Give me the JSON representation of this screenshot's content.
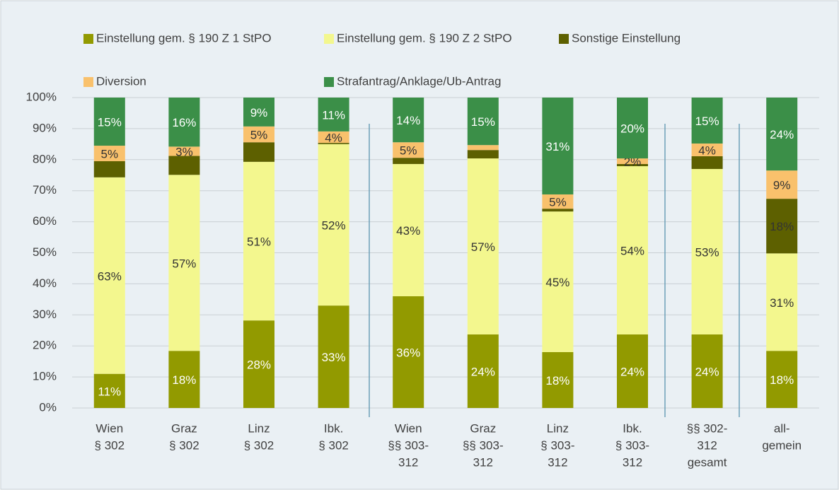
{
  "chart_data": {
    "type": "stacked-bar",
    "categories": [
      [
        "Wien",
        "§ 302"
      ],
      [
        "Graz",
        "§ 302"
      ],
      [
        "Linz",
        "§ 302"
      ],
      [
        "Ibk.",
        "§ 302"
      ],
      [
        "Wien",
        "§§ 303-",
        "312"
      ],
      [
        "Graz",
        "§§ 303-",
        "312"
      ],
      [
        "Linz",
        "§ 303-",
        "312"
      ],
      [
        "Ibk.",
        "§ 303-",
        "312"
      ],
      [
        "§§ 302-",
        "312",
        "gesamt"
      ],
      [
        "all-",
        "gemein"
      ]
    ],
    "series": [
      {
        "name": "Einstellung gem. § 190 Z 1 StPO",
        "color": "#929a00",
        "values": [
          11.0,
          18.4,
          28.2,
          33.0,
          36.0,
          23.7,
          18.0,
          23.7,
          23.7,
          18.4
        ],
        "value_labels": [
          "11%",
          "18%",
          "28%",
          "33%",
          "36%",
          "24%",
          "18%",
          "24%",
          "24%",
          "18%"
        ]
      },
      {
        "name": "Einstellung gem. § 190 Z 2 StPO",
        "color": "#f3f78e",
        "values": [
          63.3,
          56.7,
          51.1,
          52.0,
          42.6,
          56.7,
          45.3,
          54.2,
          53.3,
          31.4
        ],
        "value_labels": [
          "63%",
          "57%",
          "51%",
          "52%",
          "43%",
          "57%",
          "45%",
          "54%",
          "53%",
          "31%"
        ]
      },
      {
        "name": "Sonstige Einstellung",
        "color": "#5d6000",
        "values": [
          5.2,
          6.1,
          6.3,
          0.4,
          2.0,
          2.7,
          0.9,
          0.7,
          4.1,
          17.6
        ],
        "value_labels": [
          null,
          null,
          null,
          null,
          null,
          null,
          null,
          null,
          null,
          "18%"
        ]
      },
      {
        "name": "Diversion",
        "color": "#f9c16c",
        "values": [
          5.0,
          3.0,
          5.1,
          3.7,
          5.0,
          1.6,
          4.6,
          1.8,
          4.1,
          9.1
        ],
        "value_labels": [
          "5%",
          "3%",
          "5%",
          "4%",
          "5%",
          null,
          "5%",
          "2%",
          "4%",
          "9%"
        ]
      },
      {
        "name": "Strafantrag/Anklage/Ub-Antrag",
        "color": "#3b8f48",
        "values": [
          15.5,
          15.8,
          9.3,
          10.9,
          14.4,
          15.3,
          31.2,
          19.6,
          14.8,
          23.5
        ],
        "value_labels": [
          "15%",
          "16%",
          "9%",
          "11%",
          "14%",
          "15%",
          "31%",
          "20%",
          "15%",
          "24%"
        ]
      }
    ],
    "ylim": [
      0,
      100
    ],
    "yticks": [
      {
        "value": 0,
        "label": "0%"
      },
      {
        "value": 10,
        "label": "10%"
      },
      {
        "value": 20,
        "label": "20%"
      },
      {
        "value": 30,
        "label": "30%"
      },
      {
        "value": 40,
        "label": "40%"
      },
      {
        "value": 50,
        "label": "50%"
      },
      {
        "value": 60,
        "label": "60%"
      },
      {
        "value": 70,
        "label": "70%"
      },
      {
        "value": 80,
        "label": "80%"
      },
      {
        "value": 90,
        "label": "90%"
      },
      {
        "value": 100,
        "label": "100%"
      }
    ],
    "grid": true,
    "legend": "top"
  }
}
